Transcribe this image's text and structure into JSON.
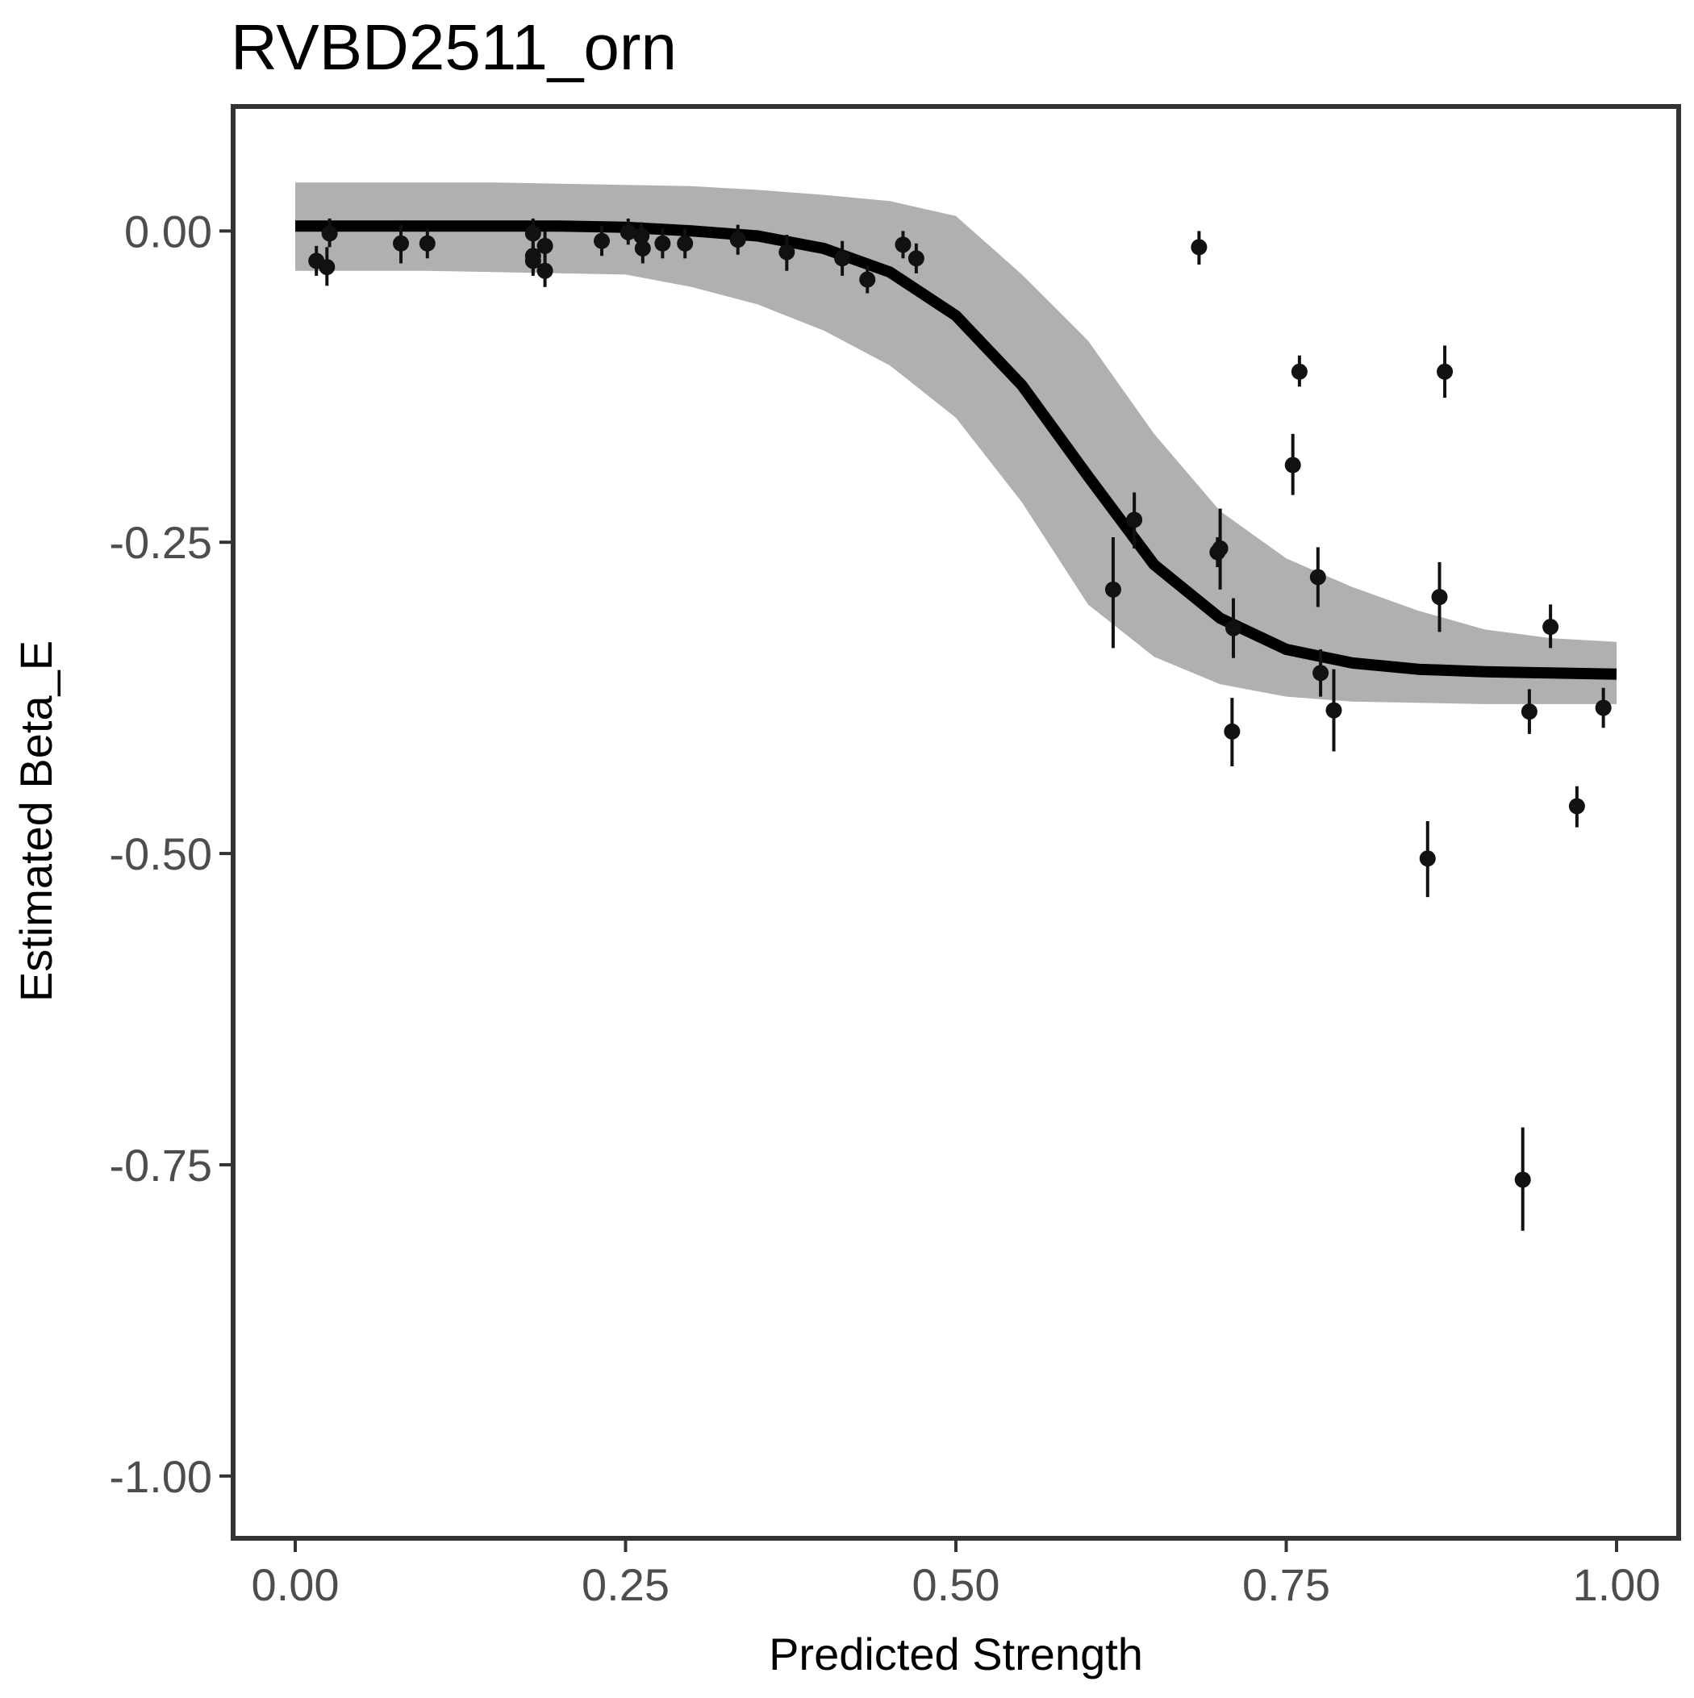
{
  "colors": {
    "background": "#ffffff",
    "panel_border": "#333333",
    "ribbon": "#b0b0b0",
    "line": "#000000",
    "points": "#111111",
    "tick_text": "#4d4d4d"
  },
  "chart_data": {
    "type": "scatter",
    "title": "RVBD2511_orn",
    "xlabel": "Predicted Strength",
    "ylabel": "Estimated Beta_E",
    "xlim": [
      -0.047,
      1.047
    ],
    "ylim": [
      -1.05,
      0.1
    ],
    "x_ticks": [
      0,
      0.25,
      0.5,
      0.75,
      1
    ],
    "x_tick_labels": [
      "0.00",
      "0.25",
      "0.50",
      "0.75",
      "1.00"
    ],
    "y_ticks": [
      0,
      -0.25,
      -0.5,
      -0.75,
      -1
    ],
    "y_tick_labels": [
      "0.00",
      "-0.25",
      "-0.50",
      "-0.75",
      "-1.00"
    ],
    "grid": false,
    "legend": "none",
    "fit_curve": {
      "x": [
        0,
        0.05,
        0.1,
        0.15,
        0.2,
        0.25,
        0.3,
        0.35,
        0.4,
        0.45,
        0.5,
        0.55,
        0.6,
        0.65,
        0.7,
        0.75,
        0.8,
        0.85,
        0.9,
        0.95,
        1
      ],
      "y": [
        0.004,
        0.004,
        0.004,
        0.004,
        0.004,
        0.003,
        0.0,
        -0.004,
        -0.014,
        -0.033,
        -0.068,
        -0.124,
        -0.197,
        -0.268,
        -0.311,
        -0.336,
        -0.347,
        -0.352,
        -0.354,
        -0.355,
        -0.356
      ],
      "lower": [
        -0.032,
        -0.032,
        -0.032,
        -0.033,
        -0.034,
        -0.035,
        -0.045,
        -0.059,
        -0.08,
        -0.108,
        -0.15,
        -0.218,
        -0.3,
        -0.342,
        -0.364,
        -0.374,
        -0.378,
        -0.379,
        -0.38,
        -0.38,
        -0.38
      ],
      "upper": [
        0.039,
        0.039,
        0.039,
        0.039,
        0.038,
        0.037,
        0.036,
        0.033,
        0.029,
        0.024,
        0.012,
        -0.035,
        -0.088,
        -0.163,
        -0.225,
        -0.263,
        -0.286,
        -0.305,
        -0.32,
        -0.327,
        -0.33
      ]
    },
    "points": [
      {
        "x": 0.016,
        "y": -0.024,
        "lo": -0.036,
        "hi": -0.012
      },
      {
        "x": 0.024,
        "y": -0.029,
        "lo": -0.044,
        "hi": -0.013
      },
      {
        "x": 0.026,
        "y": -0.002,
        "lo": -0.013,
        "hi": 0.01
      },
      {
        "x": 0.08,
        "y": -0.01,
        "lo": -0.026,
        "hi": 0.005
      },
      {
        "x": 0.1,
        "y": -0.01,
        "lo": -0.022,
        "hi": 0.002
      },
      {
        "x": 0.18,
        "y": -0.002,
        "lo": -0.013,
        "hi": 0.01
      },
      {
        "x": 0.18,
        "y": -0.02,
        "lo": -0.032,
        "hi": -0.008
      },
      {
        "x": 0.18,
        "y": -0.024,
        "lo": -0.036,
        "hi": -0.012
      },
      {
        "x": 0.189,
        "y": -0.012,
        "lo": -0.024,
        "hi": 0.0
      },
      {
        "x": 0.189,
        "y": -0.032,
        "lo": -0.045,
        "hi": -0.018
      },
      {
        "x": 0.232,
        "y": -0.008,
        "lo": -0.02,
        "hi": 0.004
      },
      {
        "x": 0.252,
        "y": -0.001,
        "lo": -0.011,
        "hi": 0.01
      },
      {
        "x": 0.262,
        "y": -0.004,
        "lo": -0.015,
        "hi": 0.007
      },
      {
        "x": 0.263,
        "y": -0.014,
        "lo": -0.026,
        "hi": -0.002
      },
      {
        "x": 0.278,
        "y": -0.01,
        "lo": -0.022,
        "hi": 0.002
      },
      {
        "x": 0.295,
        "y": -0.01,
        "lo": -0.022,
        "hi": 0.002
      },
      {
        "x": 0.335,
        "y": -0.007,
        "lo": -0.019,
        "hi": 0.005
      },
      {
        "x": 0.372,
        "y": -0.017,
        "lo": -0.032,
        "hi": -0.003
      },
      {
        "x": 0.414,
        "y": -0.022,
        "lo": -0.036,
        "hi": -0.008
      },
      {
        "x": 0.433,
        "y": -0.039,
        "lo": -0.05,
        "hi": -0.028
      },
      {
        "x": 0.46,
        "y": -0.011,
        "lo": -0.022,
        "hi": 0.0
      },
      {
        "x": 0.47,
        "y": -0.022,
        "lo": -0.034,
        "hi": -0.01
      },
      {
        "x": 0.619,
        "y": -0.288,
        "lo": -0.335,
        "hi": -0.246
      },
      {
        "x": 0.635,
        "y": -0.232,
        "lo": -0.255,
        "hi": -0.21
      },
      {
        "x": 0.684,
        "y": -0.013,
        "lo": -0.027,
        "hi": 0.0
      },
      {
        "x": 0.698,
        "y": -0.258,
        "lo": -0.27,
        "hi": -0.246
      },
      {
        "x": 0.7,
        "y": -0.255,
        "lo": -0.288,
        "hi": -0.223
      },
      {
        "x": 0.709,
        "y": -0.402,
        "lo": -0.43,
        "hi": -0.375
      },
      {
        "x": 0.71,
        "y": -0.319,
        "lo": -0.343,
        "hi": -0.295
      },
      {
        "x": 0.755,
        "y": -0.188,
        "lo": -0.212,
        "hi": -0.163
      },
      {
        "x": 0.76,
        "y": -0.113,
        "lo": -0.125,
        "hi": -0.1
      },
      {
        "x": 0.774,
        "y": -0.278,
        "lo": -0.302,
        "hi": -0.254
      },
      {
        "x": 0.776,
        "y": -0.355,
        "lo": -0.374,
        "hi": -0.336
      },
      {
        "x": 0.786,
        "y": -0.385,
        "lo": -0.418,
        "hi": -0.352
      },
      {
        "x": 0.857,
        "y": -0.504,
        "lo": -0.535,
        "hi": -0.474
      },
      {
        "x": 0.866,
        "y": -0.294,
        "lo": -0.322,
        "hi": -0.266
      },
      {
        "x": 0.87,
        "y": -0.113,
        "lo": -0.134,
        "hi": -0.092
      },
      {
        "x": 0.929,
        "y": -0.762,
        "lo": -0.803,
        "hi": -0.72
      },
      {
        "x": 0.934,
        "y": -0.386,
        "lo": -0.404,
        "hi": -0.368
      },
      {
        "x": 0.95,
        "y": -0.318,
        "lo": -0.335,
        "hi": -0.3
      },
      {
        "x": 0.97,
        "y": -0.462,
        "lo": -0.479,
        "hi": -0.446
      },
      {
        "x": 0.99,
        "y": -0.383,
        "lo": -0.399,
        "hi": -0.367
      }
    ]
  }
}
